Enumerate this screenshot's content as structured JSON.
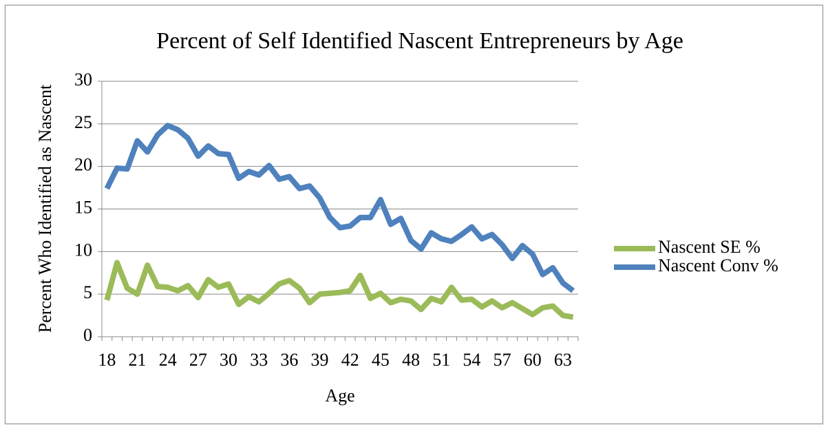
{
  "chart_data": {
    "type": "line",
    "title": "Percent of Self Identified Nascent Entrepreneurs by Age",
    "x_label": "Age",
    "y_label": "Percent Who Identified as Nascent",
    "categories": [
      18,
      null,
      null,
      21,
      null,
      null,
      24,
      null,
      null,
      27,
      null,
      null,
      30,
      null,
      null,
      33,
      null,
      null,
      36,
      null,
      null,
      39,
      null,
      null,
      42,
      null,
      null,
      45,
      null,
      null,
      48,
      null,
      null,
      51,
      null,
      null,
      54,
      null,
      null,
      57,
      null,
      null,
      60,
      null,
      null,
      63,
      null
    ],
    "series": [
      {
        "name": "Nascent SE %",
        "color": "#9bbb59",
        "values": [
          4.3,
          8.7,
          5.7,
          5.0,
          8.4,
          5.9,
          5.8,
          5.4,
          6.0,
          4.6,
          6.7,
          5.8,
          6.2,
          3.8,
          4.7,
          4.1,
          5.1,
          6.2,
          6.6,
          5.7,
          4.0,
          5.0,
          5.1,
          5.2,
          5.4,
          7.2,
          4.5,
          5.1,
          4.0,
          4.4,
          4.2,
          3.2,
          4.5,
          4.1,
          5.8,
          4.3,
          4.4,
          3.5,
          4.2,
          3.4,
          4.0,
          3.3,
          2.6,
          3.4,
          3.6,
          2.5,
          2.3
        ]
      },
      {
        "name": "Nascent Conv %",
        "color": "#4f81bd",
        "values": [
          17.4,
          19.8,
          19.7,
          23.0,
          21.7,
          23.7,
          24.8,
          24.3,
          23.3,
          21.2,
          22.4,
          21.5,
          21.4,
          18.6,
          19.4,
          19.0,
          20.1,
          18.5,
          18.8,
          17.4,
          17.7,
          16.3,
          14.0,
          12.8,
          13.0,
          14.0,
          14.0,
          16.1,
          13.2,
          13.9,
          11.3,
          10.3,
          12.2,
          11.5,
          11.2,
          12.0,
          12.9,
          11.5,
          12.0,
          10.8,
          9.2,
          10.7,
          9.7,
          7.3,
          8.1,
          6.3,
          5.4
        ]
      }
    ],
    "ylim": [
      0,
      30
    ],
    "yticks": [
      0,
      5,
      10,
      15,
      20,
      25,
      30
    ],
    "grid": true,
    "legend": "right"
  }
}
